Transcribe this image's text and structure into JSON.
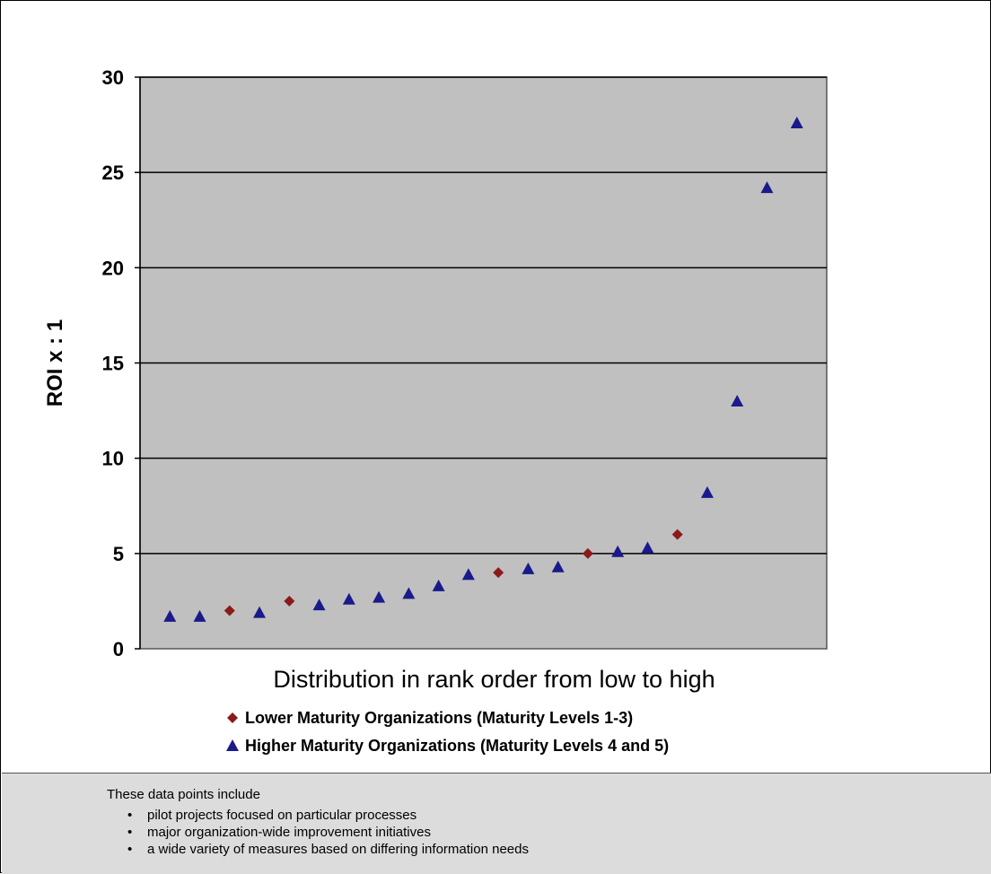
{
  "chart_data": {
    "type": "scatter",
    "ylabel": "ROI x : 1",
    "xlabel": "Distribution in rank order from low to high",
    "ylim": [
      0,
      30
    ],
    "yticks": [
      0,
      5,
      10,
      15,
      20,
      25,
      30
    ],
    "grid": true,
    "background_color": "#c0c0c0",
    "legend_position": "bottom",
    "series": [
      {
        "name": "Lower Maturity Organizations (Maturity Levels 1-3)",
        "marker": "diamond",
        "color": "#8b1a1a",
        "x": [
          3,
          5,
          12,
          15,
          18
        ],
        "y": [
          2.0,
          2.5,
          4.0,
          5.0,
          6.0
        ]
      },
      {
        "name": "Higher Maturity Organizations (Maturity Levels 4 and 5)",
        "marker": "triangle",
        "color": "#1a1a8b",
        "x": [
          1,
          2,
          4,
          6,
          7,
          8,
          9,
          10,
          11,
          13,
          14,
          16,
          17,
          19,
          20,
          21,
          22
        ],
        "y": [
          1.7,
          1.7,
          1.9,
          2.3,
          2.6,
          2.7,
          2.9,
          3.3,
          3.9,
          4.2,
          4.3,
          5.1,
          5.3,
          8.2,
          13.0,
          24.2,
          27.6
        ]
      }
    ]
  },
  "notes": {
    "heading": "These data points include",
    "bullet": "•",
    "items": [
      "pilot projects focused on particular processes",
      "major organization-wide improvement initiatives",
      "a wide variety of measures based on differing information needs"
    ]
  }
}
